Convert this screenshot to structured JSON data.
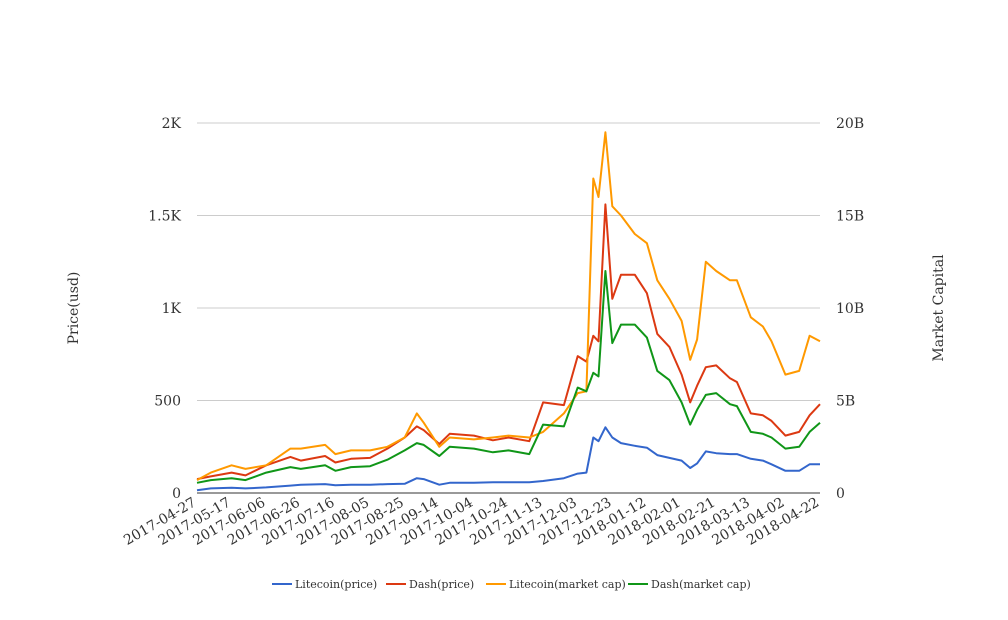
{
  "chart_data": {
    "type": "line",
    "title": "",
    "ylabel_left": "Price(usd)",
    "ylabel_right": "Market Capital",
    "x_ticks": [
      "2017-04-27",
      "2017-05-17",
      "2017-06-06",
      "2017-06-26",
      "2017-07-16",
      "2017-08-05",
      "2017-08-25",
      "2017-09-14",
      "2017-10-04",
      "2017-10-24",
      "2017-11-13",
      "2017-12-03",
      "2017-12-23",
      "2018-01-12",
      "2018-02-01",
      "2018-02-21",
      "2018-03-13",
      "2018-04-02",
      "2018-04-22"
    ],
    "y_left": {
      "min": 0,
      "max": 2000,
      "ticks": [
        0,
        500,
        1000,
        1500,
        2000
      ],
      "tick_labels": [
        "0",
        "500",
        "1K",
        "1.5K",
        "2K"
      ]
    },
    "y_right": {
      "min": 0,
      "max": 20000000000,
      "ticks": [
        0,
        5000000000,
        10000000000,
        15000000000,
        20000000000
      ],
      "tick_labels": [
        "0",
        "5B",
        "10B",
        "15B",
        "20B"
      ]
    },
    "grid": true,
    "legend_position": "bottom",
    "series": [
      {
        "name": "Litecoin(price)",
        "color": "#3366cc",
        "axis": "left",
        "points": [
          [
            "2017-04-27",
            15
          ],
          [
            "2017-05-05",
            25
          ],
          [
            "2017-05-17",
            28
          ],
          [
            "2017-05-25",
            25
          ],
          [
            "2017-06-06",
            30
          ],
          [
            "2017-06-20",
            40
          ],
          [
            "2017-06-26",
            45
          ],
          [
            "2017-07-10",
            48
          ],
          [
            "2017-07-16",
            42
          ],
          [
            "2017-07-25",
            45
          ],
          [
            "2017-08-05",
            45
          ],
          [
            "2017-08-15",
            48
          ],
          [
            "2017-08-25",
            50
          ],
          [
            "2017-09-01",
            80
          ],
          [
            "2017-09-05",
            75
          ],
          [
            "2017-09-14",
            45
          ],
          [
            "2017-09-20",
            55
          ],
          [
            "2017-10-04",
            55
          ],
          [
            "2017-10-15",
            58
          ],
          [
            "2017-10-24",
            58
          ],
          [
            "2017-11-05",
            58
          ],
          [
            "2017-11-13",
            65
          ],
          [
            "2017-11-25",
            80
          ],
          [
            "2017-12-03",
            105
          ],
          [
            "2017-12-08",
            110
          ],
          [
            "2017-12-12",
            300
          ],
          [
            "2017-12-15",
            280
          ],
          [
            "2017-12-19",
            355
          ],
          [
            "2017-12-23",
            300
          ],
          [
            "2017-12-28",
            270
          ],
          [
            "2018-01-05",
            255
          ],
          [
            "2018-01-12",
            245
          ],
          [
            "2018-01-18",
            205
          ],
          [
            "2018-01-25",
            190
          ],
          [
            "2018-02-01",
            175
          ],
          [
            "2018-02-06",
            135
          ],
          [
            "2018-02-10",
            160
          ],
          [
            "2018-02-15",
            225
          ],
          [
            "2018-02-21",
            215
          ],
          [
            "2018-03-01",
            210
          ],
          [
            "2018-03-05",
            210
          ],
          [
            "2018-03-13",
            185
          ],
          [
            "2018-03-20",
            175
          ],
          [
            "2018-03-25",
            155
          ],
          [
            "2018-04-02",
            120
          ],
          [
            "2018-04-10",
            120
          ],
          [
            "2018-04-16",
            155
          ],
          [
            "2018-04-22",
            155
          ]
        ]
      },
      {
        "name": "Dash(price)",
        "color": "#dc3912",
        "axis": "left",
        "points": [
          [
            "2017-04-27",
            75
          ],
          [
            "2017-05-05",
            90
          ],
          [
            "2017-05-17",
            110
          ],
          [
            "2017-05-25",
            95
          ],
          [
            "2017-06-06",
            150
          ],
          [
            "2017-06-20",
            195
          ],
          [
            "2017-06-26",
            175
          ],
          [
            "2017-07-10",
            200
          ],
          [
            "2017-07-16",
            165
          ],
          [
            "2017-07-25",
            185
          ],
          [
            "2017-08-05",
            190
          ],
          [
            "2017-08-15",
            240
          ],
          [
            "2017-08-25",
            300
          ],
          [
            "2017-09-01",
            360
          ],
          [
            "2017-09-05",
            340
          ],
          [
            "2017-09-14",
            265
          ],
          [
            "2017-09-20",
            320
          ],
          [
            "2017-10-04",
            310
          ],
          [
            "2017-10-15",
            285
          ],
          [
            "2017-10-24",
            300
          ],
          [
            "2017-11-05",
            280
          ],
          [
            "2017-11-13",
            490
          ],
          [
            "2017-11-25",
            475
          ],
          [
            "2017-12-03",
            740
          ],
          [
            "2017-12-08",
            710
          ],
          [
            "2017-12-12",
            850
          ],
          [
            "2017-12-15",
            820
          ],
          [
            "2017-12-19",
            1560
          ],
          [
            "2017-12-23",
            1050
          ],
          [
            "2017-12-28",
            1180
          ],
          [
            "2018-01-05",
            1180
          ],
          [
            "2018-01-12",
            1080
          ],
          [
            "2018-01-18",
            860
          ],
          [
            "2018-01-25",
            790
          ],
          [
            "2018-02-01",
            640
          ],
          [
            "2018-02-06",
            490
          ],
          [
            "2018-02-10",
            580
          ],
          [
            "2018-02-15",
            680
          ],
          [
            "2018-02-21",
            690
          ],
          [
            "2018-03-01",
            620
          ],
          [
            "2018-03-05",
            600
          ],
          [
            "2018-03-13",
            430
          ],
          [
            "2018-03-20",
            420
          ],
          [
            "2018-03-25",
            390
          ],
          [
            "2018-04-02",
            310
          ],
          [
            "2018-04-10",
            330
          ],
          [
            "2018-04-16",
            420
          ],
          [
            "2018-04-22",
            480
          ]
        ]
      },
      {
        "name": "Litecoin(market cap)",
        "color": "#ff9900",
        "axis": "right",
        "points": [
          [
            "2017-04-27",
            700000000
          ],
          [
            "2017-05-05",
            1100000000
          ],
          [
            "2017-05-17",
            1500000000
          ],
          [
            "2017-05-25",
            1300000000
          ],
          [
            "2017-06-06",
            1500000000
          ],
          [
            "2017-06-20",
            2400000000
          ],
          [
            "2017-06-26",
            2400000000
          ],
          [
            "2017-07-10",
            2600000000
          ],
          [
            "2017-07-16",
            2100000000
          ],
          [
            "2017-07-25",
            2300000000
          ],
          [
            "2017-08-05",
            2300000000
          ],
          [
            "2017-08-15",
            2500000000
          ],
          [
            "2017-08-25",
            3000000000
          ],
          [
            "2017-09-01",
            4300000000
          ],
          [
            "2017-09-05",
            3800000000
          ],
          [
            "2017-09-14",
            2500000000
          ],
          [
            "2017-09-20",
            3000000000
          ],
          [
            "2017-10-04",
            2900000000
          ],
          [
            "2017-10-15",
            3000000000
          ],
          [
            "2017-10-24",
            3100000000
          ],
          [
            "2017-11-05",
            3000000000
          ],
          [
            "2017-11-13",
            3300000000
          ],
          [
            "2017-11-25",
            4300000000
          ],
          [
            "2017-12-03",
            5400000000
          ],
          [
            "2017-12-08",
            5500000000
          ],
          [
            "2017-12-12",
            17000000000
          ],
          [
            "2017-12-15",
            16000000000
          ],
          [
            "2017-12-19",
            19500000000
          ],
          [
            "2017-12-23",
            15500000000
          ],
          [
            "2017-12-28",
            15000000000
          ],
          [
            "2018-01-05",
            14000000000
          ],
          [
            "2018-01-12",
            13500000000
          ],
          [
            "2018-01-18",
            11500000000
          ],
          [
            "2018-01-25",
            10500000000
          ],
          [
            "2018-02-01",
            9300000000
          ],
          [
            "2018-02-06",
            7200000000
          ],
          [
            "2018-02-10",
            8300000000
          ],
          [
            "2018-02-15",
            12500000000
          ],
          [
            "2018-02-21",
            12000000000
          ],
          [
            "2018-03-01",
            11500000000
          ],
          [
            "2018-03-05",
            11500000000
          ],
          [
            "2018-03-13",
            9500000000
          ],
          [
            "2018-03-20",
            9000000000
          ],
          [
            "2018-03-25",
            8200000000
          ],
          [
            "2018-04-02",
            6400000000
          ],
          [
            "2018-04-10",
            6600000000
          ],
          [
            "2018-04-16",
            8500000000
          ],
          [
            "2018-04-22",
            8200000000
          ]
        ]
      },
      {
        "name": "Dash(market cap)",
        "color": "#109618",
        "axis": "right",
        "points": [
          [
            "2017-04-27",
            550000000
          ],
          [
            "2017-05-05",
            700000000
          ],
          [
            "2017-05-17",
            800000000
          ],
          [
            "2017-05-25",
            700000000
          ],
          [
            "2017-06-06",
            1100000000
          ],
          [
            "2017-06-20",
            1400000000
          ],
          [
            "2017-06-26",
            1300000000
          ],
          [
            "2017-07-10",
            1500000000
          ],
          [
            "2017-07-16",
            1200000000
          ],
          [
            "2017-07-25",
            1400000000
          ],
          [
            "2017-08-05",
            1450000000
          ],
          [
            "2017-08-15",
            1800000000
          ],
          [
            "2017-08-25",
            2300000000
          ],
          [
            "2017-09-01",
            2700000000
          ],
          [
            "2017-09-05",
            2600000000
          ],
          [
            "2017-09-14",
            2000000000
          ],
          [
            "2017-09-20",
            2500000000
          ],
          [
            "2017-10-04",
            2400000000
          ],
          [
            "2017-10-15",
            2200000000
          ],
          [
            "2017-10-24",
            2300000000
          ],
          [
            "2017-11-05",
            2100000000
          ],
          [
            "2017-11-13",
            3700000000
          ],
          [
            "2017-11-25",
            3600000000
          ],
          [
            "2017-12-03",
            5700000000
          ],
          [
            "2017-12-08",
            5500000000
          ],
          [
            "2017-12-12",
            6500000000
          ],
          [
            "2017-12-15",
            6300000000
          ],
          [
            "2017-12-19",
            12000000000
          ],
          [
            "2017-12-23",
            8100000000
          ],
          [
            "2017-12-28",
            9100000000
          ],
          [
            "2018-01-05",
            9100000000
          ],
          [
            "2018-01-12",
            8400000000
          ],
          [
            "2018-01-18",
            6600000000
          ],
          [
            "2018-01-25",
            6100000000
          ],
          [
            "2018-02-01",
            4900000000
          ],
          [
            "2018-02-06",
            3700000000
          ],
          [
            "2018-02-10",
            4500000000
          ],
          [
            "2018-02-15",
            5300000000
          ],
          [
            "2018-02-21",
            5400000000
          ],
          [
            "2018-03-01",
            4800000000
          ],
          [
            "2018-03-05",
            4700000000
          ],
          [
            "2018-03-13",
            3300000000
          ],
          [
            "2018-03-20",
            3200000000
          ],
          [
            "2018-03-25",
            3000000000
          ],
          [
            "2018-04-02",
            2400000000
          ],
          [
            "2018-04-10",
            2500000000
          ],
          [
            "2018-04-16",
            3300000000
          ],
          [
            "2018-04-22",
            3800000000
          ]
        ]
      }
    ]
  }
}
